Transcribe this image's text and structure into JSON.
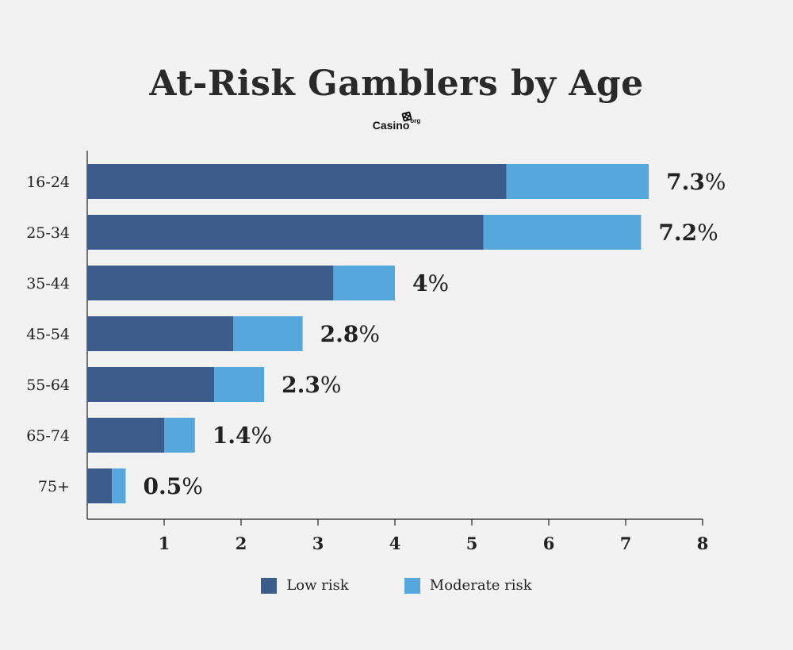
{
  "chart_data": {
    "type": "bar",
    "orientation": "horizontal",
    "stacked": true,
    "title": "At-Risk Gamblers by Age",
    "categories": [
      "16-24",
      "25-34",
      "35-44",
      "45-54",
      "55-64",
      "65-74",
      "75+"
    ],
    "series": [
      {
        "name": "Low risk",
        "values": [
          5.45,
          5.15,
          3.2,
          1.9,
          1.65,
          1.0,
          0.32
        ],
        "color": "#3c5c8c"
      },
      {
        "name": "Moderate risk",
        "values": [
          1.85,
          2.05,
          0.8,
          0.9,
          0.65,
          0.4,
          0.18
        ],
        "color": "#56a8dc"
      }
    ],
    "totals": [
      "7.3",
      "7.2",
      "4",
      "2.8",
      "2.3",
      "1.4",
      "0.5"
    ],
    "total_suffix": "%",
    "xticks": [
      1,
      2,
      3,
      4,
      5,
      6,
      7,
      8
    ],
    "xlim": [
      0,
      8
    ],
    "grid": false,
    "legend_position": "bottom"
  },
  "brand": {
    "name": "Casino",
    "suffix": "org",
    "icon": "dice-icon"
  }
}
